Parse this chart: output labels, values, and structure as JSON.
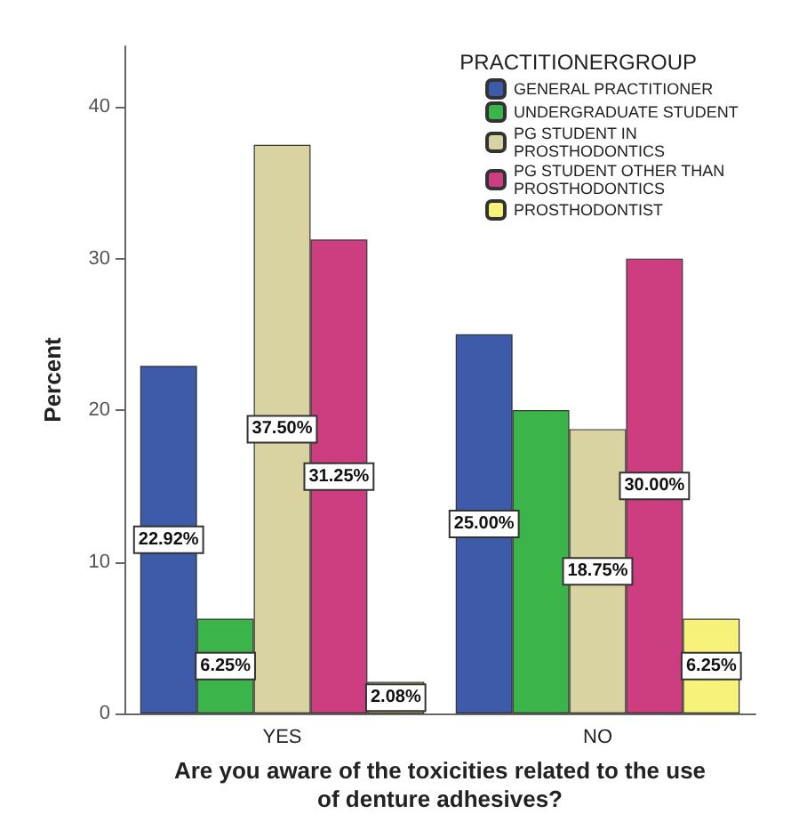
{
  "chart_data": {
    "type": "bar",
    "xlabel": "Are you aware of the toxicities related to the use of denture adhesives?",
    "ylabel": "Percent",
    "legend_title": "PRACTITIONERGROUP",
    "legend": "top right",
    "grid": false,
    "categories": [
      "YES",
      "NO"
    ],
    "ylim": [
      0,
      44
    ],
    "yticks": [
      0,
      10,
      20,
      30,
      40
    ],
    "series": [
      {
        "name": "GENERAL PRACTITIONER",
        "color": "#3e5ba9",
        "values": [
          22.92,
          25.0
        ],
        "value_labels": [
          "22.92%",
          "25.00%"
        ]
      },
      {
        "name": "UNDERGRADUATE STUDENT",
        "color": "#3bb54a",
        "values": [
          6.25,
          20.0
        ],
        "value_labels": [
          "6.25%",
          null
        ]
      },
      {
        "name": "PG STUDENT IN PROSTHODONTICS",
        "color": "#d8d3a0",
        "values": [
          37.5,
          18.75
        ],
        "value_labels": [
          "37.50%",
          "18.75%"
        ]
      },
      {
        "name": "PG STUDENT OTHER THAN PROSTHODONTICS",
        "color": "#cc3e7f",
        "values": [
          31.25,
          30.0
        ],
        "value_labels": [
          "31.25%",
          "30.00%"
        ]
      },
      {
        "name": "PROSTHODONTIST",
        "color": "#f7f27a",
        "values": [
          2.08,
          6.25
        ],
        "value_labels": [
          "2.08%",
          "6.25%"
        ]
      }
    ]
  }
}
